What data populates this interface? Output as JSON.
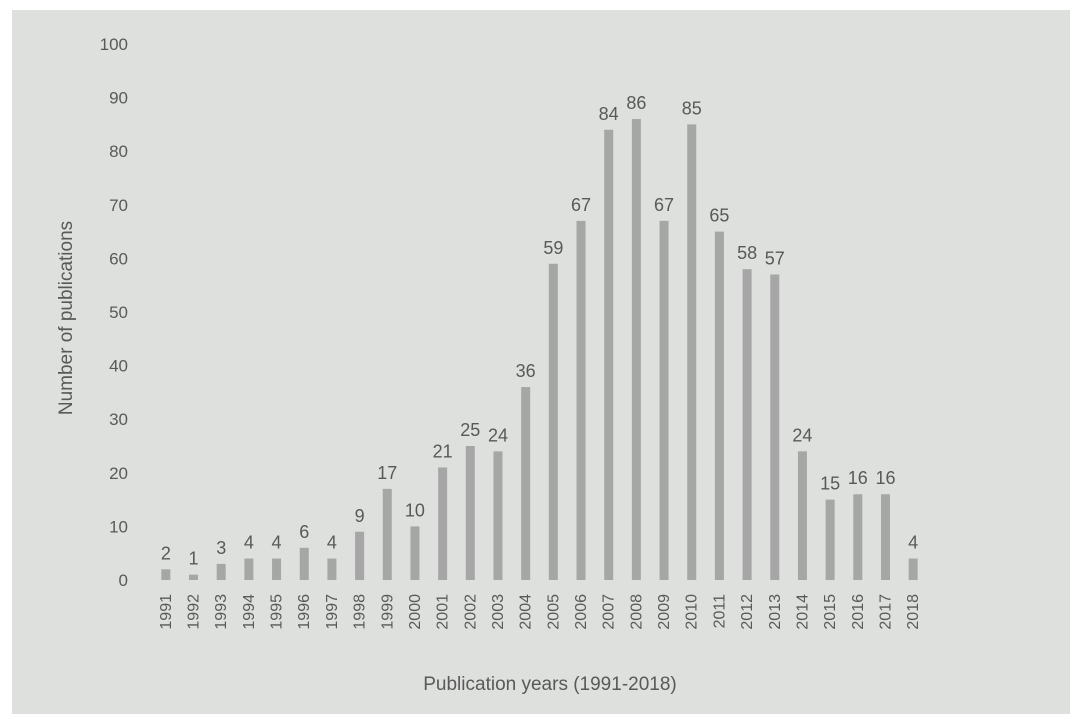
{
  "chart_data": {
    "type": "bar",
    "title": "",
    "xlabel": "Publication years (1991-2018)",
    "ylabel": "Number of publications",
    "ylim": [
      0,
      100
    ],
    "yticks": [
      0,
      10,
      20,
      30,
      40,
      50,
      60,
      70,
      80,
      90,
      100
    ],
    "grid": false,
    "categories": [
      "1991",
      "1992",
      "1993",
      "1994",
      "1995",
      "1996",
      "1997",
      "1998",
      "1999",
      "2000",
      "2001",
      "2002",
      "2003",
      "2004",
      "2005",
      "2006",
      "2007",
      "2008",
      "2009",
      "2010",
      "2011",
      "2012",
      "2013",
      "2014",
      "2015",
      "2016",
      "2017",
      "2018"
    ],
    "values": [
      2,
      1,
      3,
      4,
      4,
      6,
      4,
      9,
      17,
      10,
      21,
      25,
      24,
      36,
      59,
      67,
      84,
      86,
      67,
      85,
      65,
      58,
      57,
      24,
      15,
      16,
      16,
      4
    ],
    "bar_color": "#a6a6a6",
    "background_color": "#dde0dd",
    "text_color": "#595959"
  }
}
